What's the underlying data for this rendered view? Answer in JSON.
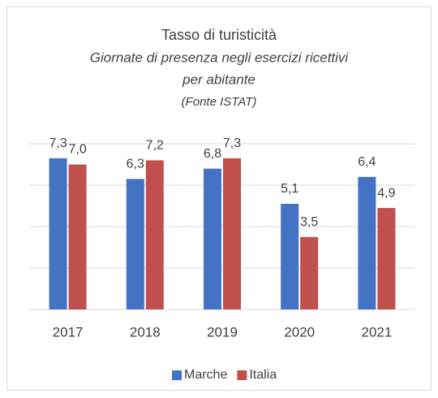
{
  "chart_data": {
    "type": "bar",
    "title": "Tasso di turisticità",
    "subtitle": [
      "Giornate di presenza negli esercizi ricettivi",
      "per abitante"
    ],
    "source": "(Fonte ISTAT)",
    "categories": [
      "2017",
      "2018",
      "2019",
      "2020",
      "2021"
    ],
    "series": [
      {
        "name": "Marche",
        "color": "#4472c4",
        "values": [
          7.3,
          6.3,
          6.8,
          5.1,
          6.4
        ],
        "value_labels": [
          "7,3",
          "6,3",
          "6,8",
          "5,1",
          "6,4"
        ]
      },
      {
        "name": "Italia",
        "color": "#c0504d",
        "values": [
          7.0,
          7.2,
          7.3,
          3.5,
          4.9
        ],
        "value_labels": [
          "7,0",
          "7,2",
          "7,3",
          "3,5",
          "4,9"
        ]
      }
    ],
    "ylim": [
      0,
      8
    ],
    "yticks": [
      0,
      2,
      4,
      6,
      8
    ],
    "grid": true,
    "legend": "bottom"
  }
}
